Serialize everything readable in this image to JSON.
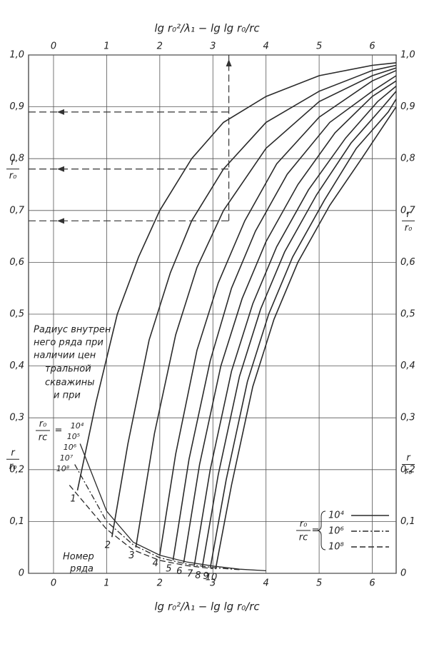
{
  "chart_data": {
    "type": "line",
    "top_xlabel": "lg r₀²/λ₁ − lg lg r₀/rc",
    "xlabel": "lg r₀²/λ₁ − lg lg r₀/rc",
    "ylabel": {
      "num": "r",
      "den": "r₀"
    },
    "ratio": {
      "num": "r₀",
      "den": "rc",
      "eq": "="
    },
    "xlim": [
      -0.47,
      6.45
    ],
    "ylim": [
      0,
      1.0
    ],
    "xticks": [
      0,
      1,
      2,
      3,
      4,
      5,
      6
    ],
    "yticks": [
      0,
      {
        "value": 0.1,
        "label": "0,1"
      },
      {
        "value": 0.2,
        "label": "0,2"
      },
      {
        "value": 0.3,
        "label": "0,3"
      },
      {
        "value": 0.4,
        "label": "0,4"
      },
      {
        "value": 0.5,
        "label": "0,5"
      },
      {
        "value": 0.6,
        "label": "0,6"
      },
      {
        "value": 0.7,
        "label": "0,7"
      },
      {
        "value": 0.8,
        "label": "0,8"
      },
      {
        "value": 0.9,
        "label": "0,9"
      },
      {
        "value": 1.0,
        "label": "1,0"
      }
    ],
    "grid": true,
    "color": "#2a2a2a",
    "series": [
      {
        "name": "10⁴",
        "dash": "solid",
        "x": [
          0.5,
          1.0,
          1.5,
          2.0,
          2.5,
          3.0,
          3.5,
          4.0
        ],
        "values": [
          0.25,
          0.12,
          0.06,
          0.035,
          0.022,
          0.014,
          0.008,
          0.005
        ]
      },
      {
        "name": "10⁶",
        "dash": "dashdot",
        "x": [
          0.4,
          1.0,
          1.5,
          2.0,
          2.5,
          3.0,
          3.5
        ],
        "values": [
          0.21,
          0.1,
          0.055,
          0.03,
          0.018,
          0.011,
          0.007
        ]
      },
      {
        "name": "10⁸",
        "dash": "dash",
        "x": [
          0.3,
          1.0,
          1.5,
          2.0,
          2.5,
          3.0
        ],
        "values": [
          0.17,
          0.085,
          0.045,
          0.025,
          0.015,
          0.009
        ]
      }
    ],
    "ratio_labels": [
      "10⁴",
      "10⁵",
      "10⁶",
      "10⁷",
      "10⁸"
    ],
    "rows": [
      {
        "label": "1",
        "x": [
          0.45,
          0.8,
          1.2,
          1.6,
          2.0,
          2.6,
          3.2,
          4.0,
          5.0,
          6.0,
          6.45
        ],
        "values": [
          0.16,
          0.33,
          0.5,
          0.61,
          0.7,
          0.8,
          0.87,
          0.92,
          0.96,
          0.98,
          0.985
        ]
      },
      {
        "label": "2",
        "x": [
          1.1,
          1.4,
          1.8,
          2.2,
          2.6,
          3.2,
          4.0,
          5.0,
          6.0,
          6.45
        ],
        "values": [
          0.07,
          0.25,
          0.45,
          0.58,
          0.68,
          0.78,
          0.87,
          0.93,
          0.97,
          0.98
        ]
      },
      {
        "label": "3",
        "x": [
          1.55,
          1.9,
          2.3,
          2.7,
          3.2,
          4.0,
          5.0,
          6.0,
          6.45
        ],
        "values": [
          0.05,
          0.27,
          0.46,
          0.59,
          0.7,
          0.82,
          0.91,
          0.96,
          0.975
        ]
      },
      {
        "label": "4",
        "x": [
          2.0,
          2.3,
          2.7,
          3.1,
          3.6,
          4.2,
          5.0,
          6.0,
          6.45
        ],
        "values": [
          0.035,
          0.23,
          0.43,
          0.56,
          0.68,
          0.79,
          0.88,
          0.95,
          0.97
        ]
      },
      {
        "label": "5",
        "x": [
          2.25,
          2.55,
          2.95,
          3.35,
          3.8,
          4.4,
          5.2,
          6.0,
          6.45
        ],
        "values": [
          0.025,
          0.22,
          0.41,
          0.55,
          0.66,
          0.77,
          0.87,
          0.93,
          0.96
        ]
      },
      {
        "label": "6",
        "x": [
          2.45,
          2.75,
          3.15,
          3.55,
          4.0,
          4.6,
          5.3,
          6.0,
          6.45
        ],
        "values": [
          0.02,
          0.21,
          0.4,
          0.53,
          0.64,
          0.75,
          0.85,
          0.92,
          0.95
        ]
      },
      {
        "label": "7",
        "x": [
          2.65,
          2.95,
          3.35,
          3.75,
          4.2,
          4.8,
          5.5,
          6.1,
          6.45
        ],
        "values": [
          0.015,
          0.2,
          0.39,
          0.52,
          0.63,
          0.74,
          0.84,
          0.91,
          0.94
        ]
      },
      {
        "label": "8",
        "x": [
          2.8,
          3.1,
          3.5,
          3.9,
          4.35,
          4.95,
          5.6,
          6.2,
          6.45
        ],
        "values": [
          0.012,
          0.19,
          0.38,
          0.51,
          0.62,
          0.73,
          0.83,
          0.9,
          0.93
        ]
      },
      {
        "label": "9",
        "x": [
          2.95,
          3.25,
          3.65,
          4.05,
          4.5,
          5.1,
          5.7,
          6.3,
          6.45
        ],
        "values": [
          0.01,
          0.18,
          0.37,
          0.5,
          0.61,
          0.72,
          0.82,
          0.89,
          0.915
        ]
      },
      {
        "label": "10",
        "x": [
          3.05,
          3.35,
          3.75,
          4.15,
          4.6,
          5.2,
          5.8,
          6.45
        ],
        "values": [
          0.008,
          0.17,
          0.36,
          0.49,
          0.6,
          0.71,
          0.8,
          0.9
        ]
      }
    ],
    "guides": {
      "x": 3.3,
      "y": [
        0.89,
        0.78,
        0.68
      ]
    },
    "annotation_lines": [
      "Радиус внутрен",
      "него ряда при",
      "наличии цен",
      "тральной",
      "скважины",
      "и при"
    ],
    "row_caption_lines": [
      "Номер",
      "ряда"
    ]
  }
}
